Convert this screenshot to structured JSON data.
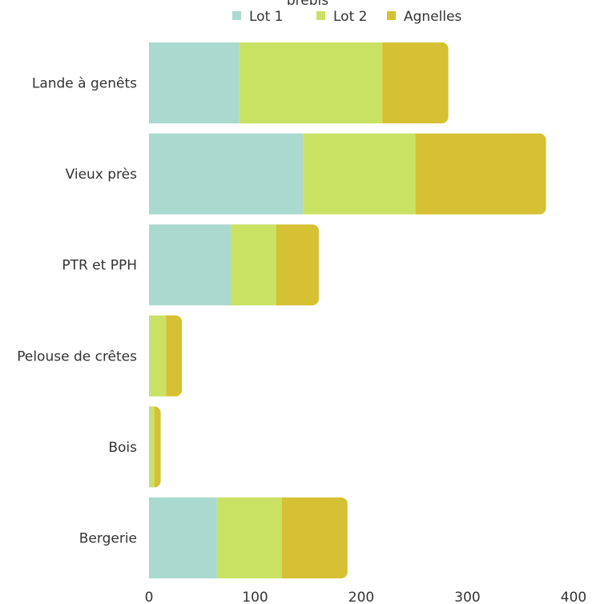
{
  "chart_data": {
    "type": "bar",
    "orientation": "horizontal",
    "stacked": true,
    "title": "brebis",
    "categories": [
      "Lande à genêts",
      "Vieux près",
      "PTR et PPH",
      "Pelouse de crêtes",
      "Bois",
      "Bergerie"
    ],
    "series": [
      {
        "name": "Lot 1",
        "color": "#a9d9cf",
        "values": [
          85,
          145,
          77,
          1,
          1,
          64
        ]
      },
      {
        "name": "Lot 2",
        "color": "#c9e264",
        "values": [
          135,
          106,
          43,
          15,
          4,
          61
        ]
      },
      {
        "name": "Agnelles",
        "color": "#d6c033",
        "values": [
          62,
          123,
          40,
          15,
          6,
          62
        ]
      }
    ],
    "xlim": [
      0,
      400
    ],
    "xticks": [
      "0",
      "100",
      "200",
      "300",
      "400"
    ],
    "xlabel": "",
    "ylabel": "",
    "legend_position": "top",
    "grid": false
  }
}
